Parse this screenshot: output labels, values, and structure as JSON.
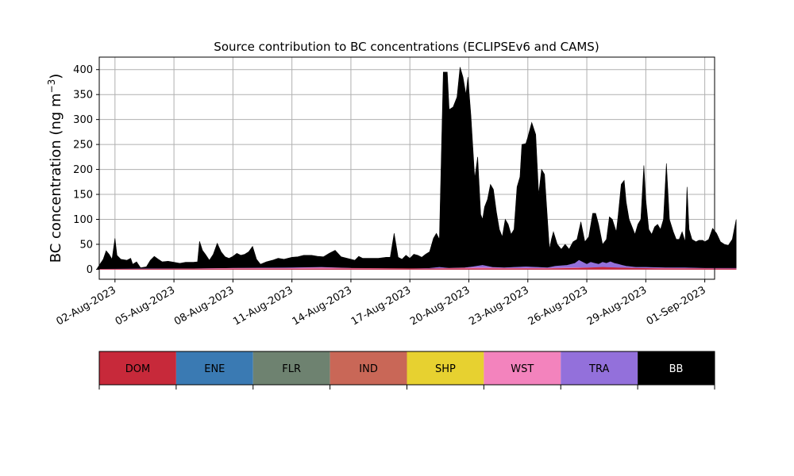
{
  "chart_data": {
    "type": "area",
    "title": "Source contribution to BC concentrations (ECLIPSEv6 and CAMS)",
    "ylabel_main": "BC concentration (ng m",
    "ylabel_sup": "−3",
    "ylabel_close": ")",
    "xlabel": "",
    "ylim": [
      -20,
      425
    ],
    "xlim_days": [
      -0.8,
      30.5
    ],
    "grid": true,
    "y_ticks": [
      0,
      50,
      100,
      150,
      200,
      250,
      300,
      350,
      400
    ],
    "x_ticks": [
      {
        "label": "02-Aug-2023",
        "day": 0
      },
      {
        "label": "05-Aug-2023",
        "day": 3
      },
      {
        "label": "08-Aug-2023",
        "day": 6
      },
      {
        "label": "11-Aug-2023",
        "day": 9
      },
      {
        "label": "14-Aug-2023",
        "day": 12
      },
      {
        "label": "17-Aug-2023",
        "day": 15
      },
      {
        "label": "20-Aug-2023",
        "day": 18
      },
      {
        "label": "23-Aug-2023",
        "day": 21
      },
      {
        "label": "26-Aug-2023",
        "day": 24
      },
      {
        "label": "29-Aug-2023",
        "day": 27
      },
      {
        "label": "01-Sep-2023",
        "day": 30
      }
    ],
    "legend": [
      {
        "name": "DOM",
        "color": "#c7293a",
        "text_color": "#000000"
      },
      {
        "name": "ENE",
        "color": "#3a7ab3",
        "text_color": "#000000"
      },
      {
        "name": "FLR",
        "color": "#6e8270",
        "text_color": "#000000"
      },
      {
        "name": "IND",
        "color": "#c96757",
        "text_color": "#000000"
      },
      {
        "name": "SHP",
        "color": "#e7d130",
        "text_color": "#000000"
      },
      {
        "name": "WST",
        "color": "#f383bd",
        "text_color": "#000000"
      },
      {
        "name": "TRA",
        "color": "#9370db",
        "text_color": "#000000"
      },
      {
        "name": "BB",
        "color": "#000000",
        "text_color": "#ffffff"
      }
    ],
    "series": [
      {
        "name": "BB",
        "points": [
          [
            -0.9,
            2
          ],
          [
            -0.6,
            20
          ],
          [
            -0.45,
            37
          ],
          [
            -0.3,
            30
          ],
          [
            -0.15,
            20
          ],
          [
            0.0,
            62
          ],
          [
            0.1,
            28
          ],
          [
            0.3,
            20
          ],
          [
            0.6,
            18
          ],
          [
            0.8,
            22
          ],
          [
            0.9,
            10
          ],
          [
            1.1,
            15
          ],
          [
            1.3,
            3
          ],
          [
            1.6,
            5
          ],
          [
            1.8,
            18
          ],
          [
            2.0,
            26
          ],
          [
            2.2,
            20
          ],
          [
            2.4,
            15
          ],
          [
            2.7,
            16
          ],
          [
            3.0,
            14
          ],
          [
            3.3,
            12
          ],
          [
            3.6,
            14
          ],
          [
            4.0,
            14
          ],
          [
            4.2,
            15
          ],
          [
            4.3,
            56
          ],
          [
            4.45,
            38
          ],
          [
            4.6,
            30
          ],
          [
            4.8,
            18
          ],
          [
            5.0,
            30
          ],
          [
            5.2,
            52
          ],
          [
            5.4,
            35
          ],
          [
            5.6,
            25
          ],
          [
            5.8,
            22
          ],
          [
            6.0,
            26
          ],
          [
            6.2,
            32
          ],
          [
            6.4,
            28
          ],
          [
            6.6,
            30
          ],
          [
            6.8,
            35
          ],
          [
            7.0,
            46
          ],
          [
            7.2,
            20
          ],
          [
            7.4,
            10
          ],
          [
            7.7,
            15
          ],
          [
            8.0,
            18
          ],
          [
            8.3,
            22
          ],
          [
            8.6,
            20
          ],
          [
            9.0,
            24
          ],
          [
            9.3,
            25
          ],
          [
            9.6,
            28
          ],
          [
            10.0,
            28
          ],
          [
            10.3,
            26
          ],
          [
            10.6,
            25
          ],
          [
            10.9,
            32
          ],
          [
            11.2,
            38
          ],
          [
            11.5,
            25
          ],
          [
            11.8,
            22
          ],
          [
            12.0,
            20
          ],
          [
            12.2,
            18
          ],
          [
            12.4,
            26
          ],
          [
            12.6,
            22
          ],
          [
            13.0,
            22
          ],
          [
            13.4,
            22
          ],
          [
            13.8,
            24
          ],
          [
            14.0,
            24
          ],
          [
            14.2,
            72
          ],
          [
            14.4,
            24
          ],
          [
            14.6,
            20
          ],
          [
            14.8,
            28
          ],
          [
            15.0,
            22
          ],
          [
            15.2,
            30
          ],
          [
            15.4,
            28
          ],
          [
            15.6,
            24
          ],
          [
            15.8,
            30
          ],
          [
            16.0,
            35
          ],
          [
            16.2,
            62
          ],
          [
            16.35,
            72
          ],
          [
            16.5,
            60
          ],
          [
            16.7,
            395
          ],
          [
            16.9,
            395
          ],
          [
            17.0,
            320
          ],
          [
            17.2,
            325
          ],
          [
            17.4,
            345
          ],
          [
            17.55,
            405
          ],
          [
            17.7,
            385
          ],
          [
            17.85,
            350
          ],
          [
            17.95,
            385
          ],
          [
            18.1,
            310
          ],
          [
            18.3,
            182
          ],
          [
            18.45,
            225
          ],
          [
            18.6,
            110
          ],
          [
            18.7,
            100
          ],
          [
            18.8,
            125
          ],
          [
            18.95,
            140
          ],
          [
            19.1,
            170
          ],
          [
            19.25,
            160
          ],
          [
            19.4,
            115
          ],
          [
            19.55,
            80
          ],
          [
            19.7,
            65
          ],
          [
            19.85,
            100
          ],
          [
            20.0,
            90
          ],
          [
            20.15,
            70
          ],
          [
            20.3,
            80
          ],
          [
            20.45,
            165
          ],
          [
            20.6,
            185
          ],
          [
            20.7,
            250
          ],
          [
            20.9,
            252
          ],
          [
            21.0,
            265
          ],
          [
            21.2,
            294
          ],
          [
            21.4,
            270
          ],
          [
            21.55,
            150
          ],
          [
            21.7,
            200
          ],
          [
            21.85,
            190
          ],
          [
            22.0,
            100
          ],
          [
            22.1,
            40
          ],
          [
            22.2,
            60
          ],
          [
            22.3,
            75
          ],
          [
            22.5,
            50
          ],
          [
            22.7,
            40
          ],
          [
            22.9,
            50
          ],
          [
            23.1,
            40
          ],
          [
            23.3,
            55
          ],
          [
            23.5,
            60
          ],
          [
            23.7,
            95
          ],
          [
            23.9,
            55
          ],
          [
            24.1,
            65
          ],
          [
            24.3,
            112
          ],
          [
            24.45,
            112
          ],
          [
            24.6,
            90
          ],
          [
            24.8,
            50
          ],
          [
            25.0,
            60
          ],
          [
            25.15,
            105
          ],
          [
            25.3,
            100
          ],
          [
            25.5,
            75
          ],
          [
            25.6,
            110
          ],
          [
            25.75,
            170
          ],
          [
            25.9,
            178
          ],
          [
            26.0,
            135
          ],
          [
            26.15,
            100
          ],
          [
            26.3,
            85
          ],
          [
            26.45,
            70
          ],
          [
            26.6,
            90
          ],
          [
            26.75,
            100
          ],
          [
            26.9,
            208
          ],
          [
            27.0,
            140
          ],
          [
            27.15,
            80
          ],
          [
            27.3,
            70
          ],
          [
            27.45,
            85
          ],
          [
            27.6,
            90
          ],
          [
            27.75,
            80
          ],
          [
            27.9,
            100
          ],
          [
            28.05,
            212
          ],
          [
            28.2,
            100
          ],
          [
            28.4,
            75
          ],
          [
            28.55,
            60
          ],
          [
            28.7,
            60
          ],
          [
            28.85,
            75
          ],
          [
            29.0,
            55
          ],
          [
            29.1,
            165
          ],
          [
            29.2,
            80
          ],
          [
            29.35,
            60
          ],
          [
            29.55,
            55
          ],
          [
            29.7,
            58
          ],
          [
            29.9,
            58
          ],
          [
            30.0,
            55
          ],
          [
            30.2,
            60
          ],
          [
            30.4,
            82
          ],
          [
            30.6,
            72
          ],
          [
            30.8,
            55
          ],
          [
            31.0,
            50
          ],
          [
            31.2,
            48
          ],
          [
            31.4,
            60
          ],
          [
            31.6,
            100
          ]
        ]
      },
      {
        "name": "TRA",
        "points": [
          [
            -0.9,
            0
          ],
          [
            2.0,
            1
          ],
          [
            4.0,
            1
          ],
          [
            6.0,
            2
          ],
          [
            9.0,
            3
          ],
          [
            10.5,
            4
          ],
          [
            12.0,
            2
          ],
          [
            14.0,
            1
          ],
          [
            15.0,
            1
          ],
          [
            16.0,
            2
          ],
          [
            16.5,
            4
          ],
          [
            17.0,
            2
          ],
          [
            17.8,
            3
          ],
          [
            18.2,
            5
          ],
          [
            18.7,
            8
          ],
          [
            19.2,
            4
          ],
          [
            19.8,
            3
          ],
          [
            20.3,
            4
          ],
          [
            20.9,
            5
          ],
          [
            21.5,
            4
          ],
          [
            22.0,
            3
          ],
          [
            22.4,
            6
          ],
          [
            23.0,
            8
          ],
          [
            23.4,
            12
          ],
          [
            23.6,
            18
          ],
          [
            23.8,
            14
          ],
          [
            24.0,
            10
          ],
          [
            24.2,
            14
          ],
          [
            24.4,
            12
          ],
          [
            24.6,
            10
          ],
          [
            24.8,
            14
          ],
          [
            25.0,
            12
          ],
          [
            25.2,
            15
          ],
          [
            25.4,
            12
          ],
          [
            25.6,
            10
          ],
          [
            25.8,
            8
          ],
          [
            26.0,
            6
          ],
          [
            26.5,
            4
          ],
          [
            27.0,
            4
          ],
          [
            28.0,
            3
          ],
          [
            29.0,
            3
          ],
          [
            30.0,
            2
          ],
          [
            31.0,
            2
          ],
          [
            31.6,
            2
          ]
        ]
      },
      {
        "name": "WST",
        "points": [
          [
            -0.9,
            0
          ],
          [
            4.0,
            1
          ],
          [
            6.0,
            2
          ],
          [
            9.0,
            2
          ],
          [
            10.5,
            3
          ],
          [
            12.0,
            2
          ],
          [
            16.0,
            1
          ],
          [
            17.0,
            2
          ],
          [
            18.5,
            3
          ],
          [
            20.0,
            2
          ],
          [
            22.0,
            2
          ],
          [
            23.5,
            3
          ],
          [
            25.0,
            3
          ],
          [
            26.0,
            2
          ],
          [
            28.0,
            2
          ],
          [
            31.6,
            1
          ]
        ]
      },
      {
        "name": "DOM",
        "points": [
          [
            -0.9,
            0
          ],
          [
            16.0,
            1
          ],
          [
            17.0,
            1
          ],
          [
            22.0,
            1
          ],
          [
            23.4,
            2
          ],
          [
            24.2,
            3
          ],
          [
            24.8,
            4
          ],
          [
            25.5,
            3
          ],
          [
            26.5,
            2
          ],
          [
            28.0,
            1
          ],
          [
            31.6,
            1
          ]
        ]
      }
    ]
  }
}
